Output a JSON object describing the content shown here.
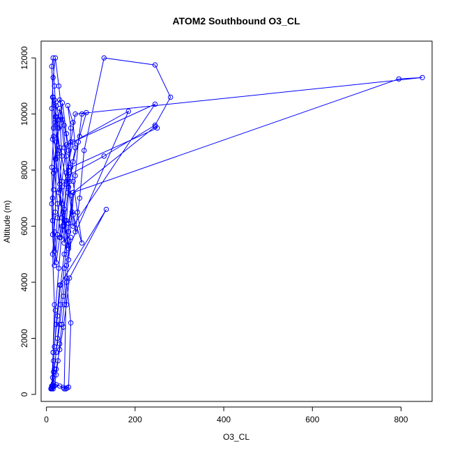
{
  "chart_data": {
    "type": "line",
    "title": "ATOM2 Southbound O3_CL",
    "xlabel": "O3_CL",
    "ylabel": "Altitude (m)",
    "xlim": [
      -12,
      870
    ],
    "ylim": [
      -250,
      12600
    ],
    "xticks": [
      0,
      200,
      400,
      600,
      800
    ],
    "yticks": [
      0,
      2000,
      4000,
      6000,
      8000,
      10000,
      12000
    ],
    "xtick_labels": [
      "0",
      "200",
      "400",
      "600",
      "800"
    ],
    "ytick_labels": [
      "0",
      "2000",
      "4000",
      "6000",
      "8000",
      "10000",
      "12000"
    ],
    "grid": false,
    "legend": "none",
    "series": [
      {
        "color": "#0000ff",
        "marker": "open-circle",
        "x": [
          12,
          15,
          18,
          14,
          20,
          22,
          25,
          18,
          30,
          35,
          28,
          40,
          45,
          38,
          50,
          55,
          48,
          60,
          65,
          52,
          45,
          40,
          35,
          30,
          25,
          20,
          15,
          12,
          15,
          18,
          22,
          28,
          35,
          42,
          50,
          58,
          65,
          72,
          80,
          90,
          75,
          60,
          48,
          40,
          32,
          25,
          18,
          14,
          12,
          15,
          20,
          28,
          36,
          45,
          55,
          65,
          75,
          85,
          130,
          245,
          280,
          245,
          130,
          48,
          40,
          30,
          22,
          18,
          14,
          12,
          16,
          22,
          30,
          40,
          50,
          60,
          70,
          80,
          60,
          45,
          30,
          20,
          14,
          16,
          22,
          30,
          40,
          50,
          185,
          60,
          45,
          35,
          25,
          18,
          14,
          12,
          16,
          22,
          30,
          40,
          50,
          60,
          245,
          45,
          35,
          25,
          18,
          14,
          16,
          20,
          28,
          36,
          45,
          55,
          250,
          245,
          60,
          50,
          40,
          32,
          25,
          18,
          14,
          12,
          15,
          20,
          28,
          36,
          45,
          55,
          65,
          848,
          795,
          60,
          50,
          40,
          32,
          25,
          18,
          14,
          12,
          16,
          22,
          30,
          135,
          52,
          45,
          38,
          30,
          22,
          16,
          12,
          15,
          18,
          22,
          26,
          30,
          35,
          40,
          45,
          50,
          55,
          45,
          38,
          30,
          22,
          16,
          12,
          10,
          12,
          16,
          22,
          30,
          38,
          44,
          46,
          50,
          55,
          45,
          40
        ],
        "y": [
          250,
          1500,
          3200,
          5000,
          6500,
          8000,
          9500,
          10500,
          9800,
          8500,
          7200,
          6000,
          5000,
          6500,
          8000,
          9500,
          10300,
          9700,
          8800,
          7600,
          6200,
          5400,
          6300,
          7500,
          8600,
          9700,
          10600,
          11700,
          12000,
          11000,
          9900,
          8700,
          7400,
          6200,
          5300,
          6500,
          7800,
          9000,
          10000,
          10050,
          9200,
          8300,
          7200,
          6000,
          5600,
          6800,
          8000,
          9100,
          10200,
          11300,
          12000,
          11000,
          9800,
          8500,
          7100,
          5800,
          7000,
          8700,
          12000,
          11750,
          10600,
          9600,
          8500,
          7800,
          6600,
          5600,
          4700,
          5800,
          7000,
          8100,
          9200,
          10300,
          10500,
          9600,
          8700,
          7600,
          6500,
          5400,
          6400,
          7600,
          8800,
          9900,
          10600,
          9500,
          8400,
          7300,
          6200,
          5200,
          10100,
          9000,
          7900,
          6800,
          5700,
          4600,
          5700,
          6800,
          7900,
          9000,
          10200,
          8800,
          7400,
          6000,
          10350,
          8900,
          7600,
          6300,
          5100,
          6200,
          7300,
          8400,
          9500,
          10400,
          9300,
          8100,
          9500,
          9550,
          7200,
          6100,
          5000,
          3900,
          2800,
          1700,
          600,
          300,
          1500,
          3000,
          4500,
          6000,
          7500,
          9000,
          10000,
          11300,
          11250,
          7200,
          5800,
          4500,
          3200,
          2000,
          900,
          300,
          250,
          1200,
          2500,
          3900,
          6600,
          4150,
          3200,
          2400,
          1600,
          900,
          400,
          200,
          200,
          300,
          700,
          1200,
          1800,
          2500,
          3200,
          4000,
          4800,
          5600,
          4600,
          3500,
          2500,
          1500,
          800,
          300,
          200,
          220,
          280,
          350,
          300,
          250,
          200,
          230,
          260,
          2550,
          4150,
          200
        ]
      }
    ]
  }
}
